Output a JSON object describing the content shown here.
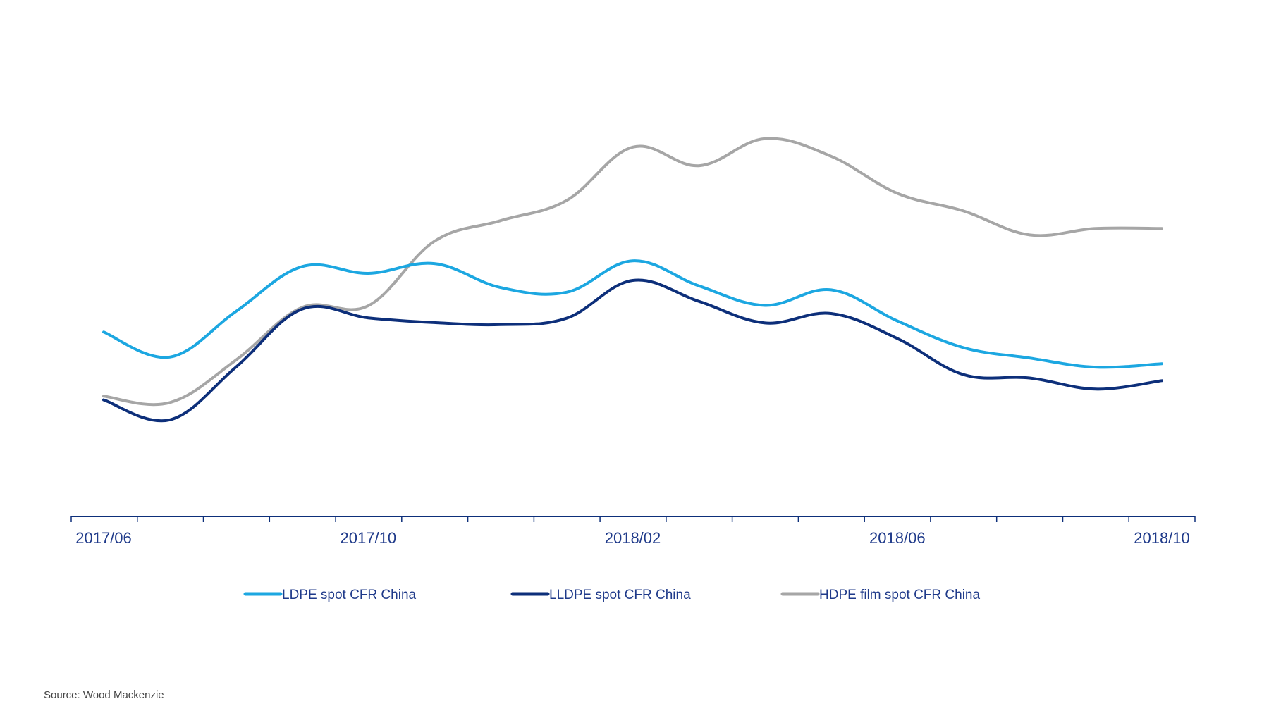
{
  "chart_data": {
    "type": "line",
    "title": "",
    "xlabel": "",
    "ylabel": "",
    "x": [
      "2017/06",
      "2017/07",
      "2017/08",
      "2017/09",
      "2017/10",
      "2017/11",
      "2017/12",
      "2018/01",
      "2018/02",
      "2018/03",
      "2018/04",
      "2018/05",
      "2018/06",
      "2018/07",
      "2018/08",
      "2018/09",
      "2018/10"
    ],
    "tick_labels": [
      "2017/06",
      "2017/10",
      "2018/02",
      "2018/06",
      "2018/10"
    ],
    "tick_label_indices": [
      0,
      4,
      8,
      12,
      16
    ],
    "ylim": [
      0,
      100
    ],
    "y_axis_shown": false,
    "grid": false,
    "legend_position": "bottom",
    "series": [
      {
        "name": "LDPE spot CFR China",
        "color": "#1ca7e1",
        "values": [
          39.6,
          32.2,
          45.7,
          59.0,
          57.0,
          59.9,
          52.8,
          51.4,
          60.7,
          53.3,
          47.5,
          52.1,
          42.9,
          35.0,
          31.9,
          29.2,
          30.2
        ]
      },
      {
        "name": "LLDPE spot CFR China",
        "color": "#0d2f7a",
        "values": [
          19.5,
          13.6,
          29.2,
          46.4,
          43.8,
          42.4,
          41.8,
          43.7,
          54.9,
          48.7,
          42.3,
          45.1,
          37.7,
          27.0,
          26.0,
          22.7,
          25.2
        ]
      },
      {
        "name": "HDPE film spot CFR China",
        "color": "#a6a6a6",
        "values": [
          20.6,
          18.7,
          31.3,
          46.9,
          47.4,
          66.5,
          72.6,
          78.6,
          94.4,
          88.9,
          96.9,
          91.7,
          80.7,
          75.5,
          68.4,
          70.3,
          70.3
        ]
      }
    ]
  },
  "source": "Source: Wood Mackenzie"
}
